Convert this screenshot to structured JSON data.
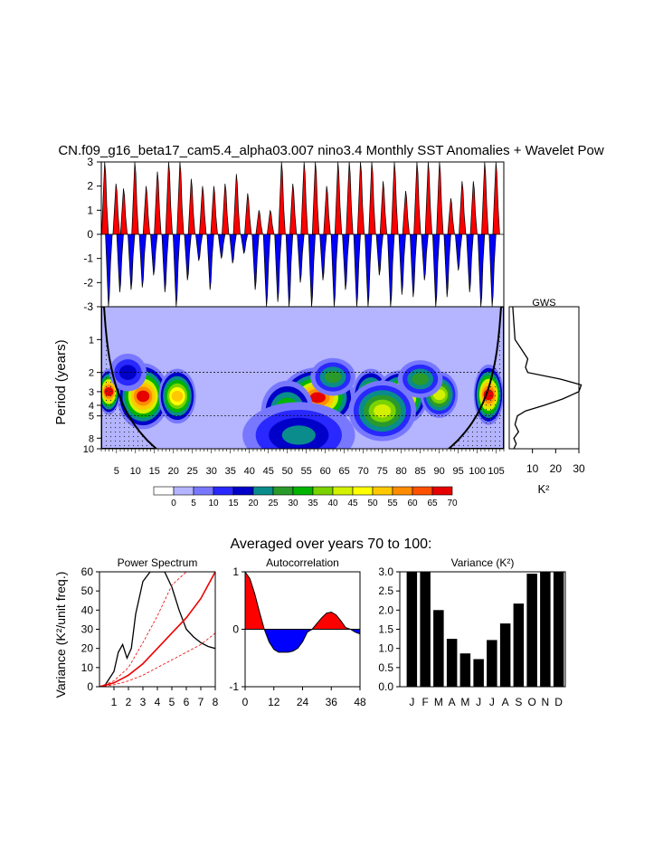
{
  "title": "CN.f09_g16_beta17_cam5.4_alpha03.007 nino3.4 Monthly SST Anomalies + Wavelet Pow",
  "averaged_title": "Averaged over years 70 to 100:",
  "colors": {
    "positive": "#ff0000",
    "negative": "#0000ff",
    "contour_levels": [
      "#ffffff",
      "#b4b4ff",
      "#7878ff",
      "#2828ff",
      "#0000c8",
      "#0a8c8c",
      "#2a9a2a",
      "#00b400",
      "#7ad200",
      "#d2f000",
      "#ffff00",
      "#ffc800",
      "#ff8c00",
      "#ff5000",
      "#e60000"
    ]
  },
  "chart_data": [
    {
      "id": "timeseries",
      "type": "area",
      "title": "",
      "xlabel": "",
      "ylabel": "",
      "ylim": [
        -3,
        3
      ],
      "yticks": [
        "3",
        "2",
        "1",
        "0",
        "-1",
        "-2",
        "-3"
      ],
      "pos_peaks": [
        [
          1,
          3
        ],
        [
          4,
          2.1
        ],
        [
          6,
          1.9
        ],
        [
          9,
          3
        ],
        [
          12,
          2
        ],
        [
          15,
          2.6
        ],
        [
          18,
          3
        ],
        [
          21,
          3
        ],
        [
          24,
          2.3
        ],
        [
          27,
          2
        ],
        [
          30,
          2
        ],
        [
          33,
          2.1
        ],
        [
          36,
          2.5
        ],
        [
          39,
          1.7
        ],
        [
          42,
          1
        ],
        [
          45,
          1
        ],
        [
          48,
          3
        ],
        [
          51,
          2.1
        ],
        [
          54,
          3
        ],
        [
          57,
          3
        ],
        [
          60,
          2
        ],
        [
          63,
          3
        ],
        [
          66,
          3
        ],
        [
          69,
          3
        ],
        [
          72,
          3
        ],
        [
          75,
          2.2
        ],
        [
          78,
          3
        ],
        [
          81,
          1.8
        ],
        [
          84,
          3
        ],
        [
          87,
          3
        ],
        [
          90,
          3
        ],
        [
          93,
          1.5
        ],
        [
          96,
          2.2
        ],
        [
          99,
          2.2
        ],
        [
          102,
          3
        ],
        [
          105,
          3
        ]
      ],
      "neg_troughs": [
        [
          2,
          -3
        ],
        [
          5,
          -2.4
        ],
        [
          8,
          -2.3
        ],
        [
          11,
          -2.2
        ],
        [
          14,
          -1.7
        ],
        [
          17,
          -2.4
        ],
        [
          20,
          -3
        ],
        [
          23,
          -1.9
        ],
        [
          26,
          -1.1
        ],
        [
          29,
          -2.3
        ],
        [
          32,
          -1
        ],
        [
          35,
          -1.2
        ],
        [
          38,
          -0.8
        ],
        [
          41,
          -2.3
        ],
        [
          44,
          -3
        ],
        [
          47,
          -2.8
        ],
        [
          50,
          -3
        ],
        [
          53,
          -2
        ],
        [
          56,
          -3
        ],
        [
          59,
          -1.9
        ],
        [
          62,
          -3
        ],
        [
          65,
          -2.3
        ],
        [
          68,
          -3
        ],
        [
          71,
          -3
        ],
        [
          74,
          -1.7
        ],
        [
          77,
          -3
        ],
        [
          80,
          -2.5
        ],
        [
          83,
          -2.6
        ],
        [
          86,
          -1.9
        ],
        [
          89,
          -3
        ],
        [
          92,
          -2.6
        ],
        [
          95,
          -1.5
        ],
        [
          98,
          -2.4
        ],
        [
          101,
          -3
        ],
        [
          104,
          -3
        ]
      ]
    },
    {
      "id": "wavelet",
      "type": "heatmap",
      "ylabel": "Period (years)",
      "ylim": [
        0.5,
        10
      ],
      "yticks": [
        "1",
        "2",
        "3",
        "4",
        "5",
        "8",
        "10"
      ],
      "xticks": [
        "5",
        "10",
        "15",
        "20",
        "25",
        "30",
        "35",
        "40",
        "45",
        "50",
        "55",
        "60",
        "65",
        "70",
        "75",
        "80",
        "85",
        "90",
        "95",
        "100",
        "105"
      ],
      "xlim": [
        1,
        107
      ],
      "colorbar_labels": [
        "0",
        "5",
        "10",
        "15",
        "20",
        "25",
        "30",
        "35",
        "40",
        "45",
        "50",
        "55",
        "60",
        "65",
        "70"
      ],
      "blobs": [
        {
          "year": 12,
          "period": 3.3,
          "power": 70,
          "width": 6,
          "height": 0.22
        },
        {
          "year": 21,
          "period": 3.3,
          "power": 55,
          "width": 4,
          "height": 0.18
        },
        {
          "year": 3,
          "period": 3.0,
          "power": 70,
          "width": 2,
          "height": 0.15
        },
        {
          "year": 58,
          "period": 3.4,
          "power": 70,
          "width": 9,
          "height": 0.2
        },
        {
          "year": 72,
          "period": 3.3,
          "power": 50,
          "width": 4,
          "height": 0.18
        },
        {
          "year": 80,
          "period": 3.4,
          "power": 70,
          "width": 6,
          "height": 0.18
        },
        {
          "year": 90,
          "period": 3.2,
          "power": 45,
          "width": 4,
          "height": 0.15
        },
        {
          "year": 103,
          "period": 3.2,
          "power": 70,
          "width": 3,
          "height": 0.2
        },
        {
          "year": 50,
          "period": 4.5,
          "power": 40,
          "width": 6,
          "height": 0.2
        },
        {
          "year": 75,
          "period": 4.5,
          "power": 45,
          "width": 8,
          "height": 0.2
        },
        {
          "year": 53,
          "period": 7.5,
          "power": 25,
          "width": 14,
          "height": 0.22
        },
        {
          "year": 8,
          "period": 2.0,
          "power": 20,
          "width": 4,
          "height": 0.12
        },
        {
          "year": 62,
          "period": 2.2,
          "power": 30,
          "width": 5,
          "height": 0.12
        },
        {
          "year": 85,
          "period": 2.3,
          "power": 30,
          "width": 5,
          "height": 0.12
        }
      ],
      "global_wavelet_spectrum": {
        "title": "GWS",
        "xlabel": "K²",
        "xticks": [
          "10",
          "20",
          "30"
        ],
        "xlim": [
          0,
          30
        ],
        "period": [
          0.5,
          1.0,
          1.2,
          1.5,
          1.8,
          2.0,
          2.3,
          2.6,
          3.0,
          3.5,
          4.0,
          4.5,
          5.0,
          6.0,
          7.0,
          8.0,
          9.0,
          10.0
        ],
        "power": [
          1.5,
          2.5,
          5,
          8,
          7,
          8,
          22,
          31,
          30,
          23,
          15,
          7,
          3.5,
          2.5,
          4,
          2,
          3,
          2
        ]
      }
    },
    {
      "id": "power_spectrum",
      "type": "line",
      "title": "Power Spectrum",
      "ylabel": "Variance (K²/unit freq.)",
      "xlim": [
        0,
        8
      ],
      "ylim": [
        0,
        60
      ],
      "xticks": [
        "1",
        "2",
        "3",
        "4",
        "5",
        "6",
        "7",
        "8"
      ],
      "yticks": [
        "0",
        "10",
        "20",
        "30",
        "40",
        "50",
        "60"
      ],
      "series": [
        {
          "name": "spectrum",
          "x": [
            0.4,
            1.0,
            1.3,
            1.6,
            1.9,
            2.2,
            2.5,
            3.0,
            3.5,
            4.0,
            4.5,
            5.0,
            5.5,
            6.0,
            6.5,
            7.0,
            7.5,
            8.0
          ],
          "y": [
            1,
            8,
            18,
            22,
            15,
            20,
            38,
            55,
            60,
            60,
            60,
            52,
            40,
            30,
            26,
            23,
            21,
            20
          ]
        },
        {
          "name": "red_noise",
          "x": [
            0,
            1,
            2,
            3,
            4,
            5,
            6,
            7,
            8
          ],
          "y": [
            0,
            2,
            6,
            12,
            20,
            28,
            36,
            46,
            60
          ]
        },
        {
          "name": "red_noise_upper",
          "x": [
            0,
            1,
            2,
            3,
            4,
            5,
            6
          ],
          "y": [
            0,
            3,
            10,
            23,
            37,
            53,
            60
          ]
        },
        {
          "name": "red_noise_lower",
          "x": [
            0,
            1,
            2,
            3,
            4,
            5,
            6,
            7,
            8
          ],
          "y": [
            0,
            1,
            3,
            6,
            10,
            14,
            18,
            22,
            28
          ]
        }
      ]
    },
    {
      "id": "autocorrelation",
      "type": "area",
      "title": "Autocorrelation",
      "xlim": [
        0,
        48
      ],
      "ylim": [
        -1,
        1
      ],
      "xticks": [
        "0",
        "12",
        "24",
        "36",
        "48"
      ],
      "yticks": [
        "1",
        "0",
        "-1"
      ],
      "x": [
        0,
        2,
        4,
        6,
        8,
        10,
        12,
        14,
        16,
        18,
        20,
        22,
        24,
        26,
        28,
        30,
        32,
        34,
        36,
        38,
        40,
        42,
        44,
        46,
        48
      ],
      "y": [
        1,
        0.88,
        0.62,
        0.3,
        0,
        -0.22,
        -0.35,
        -0.4,
        -0.4,
        -0.4,
        -0.38,
        -0.33,
        -0.22,
        -0.05,
        0,
        0.1,
        0.2,
        0.28,
        0.3,
        0.25,
        0.15,
        0.03,
        0,
        -0.05,
        -0.08
      ]
    },
    {
      "id": "variance",
      "type": "bar",
      "title": "Variance (K²)",
      "categories": [
        "J",
        "F",
        "M",
        "A",
        "M",
        "J",
        "J",
        "A",
        "S",
        "O",
        "N",
        "D"
      ],
      "values": [
        3.0,
        3.0,
        2.0,
        1.25,
        0.87,
        0.72,
        1.22,
        1.65,
        2.17,
        2.95,
        3.0,
        3.0
      ],
      "ylim": [
        0,
        3
      ],
      "yticks": [
        "3.0",
        "2.5",
        "2.0",
        "1.5",
        "1.0",
        "0.5",
        "0.0"
      ]
    }
  ]
}
